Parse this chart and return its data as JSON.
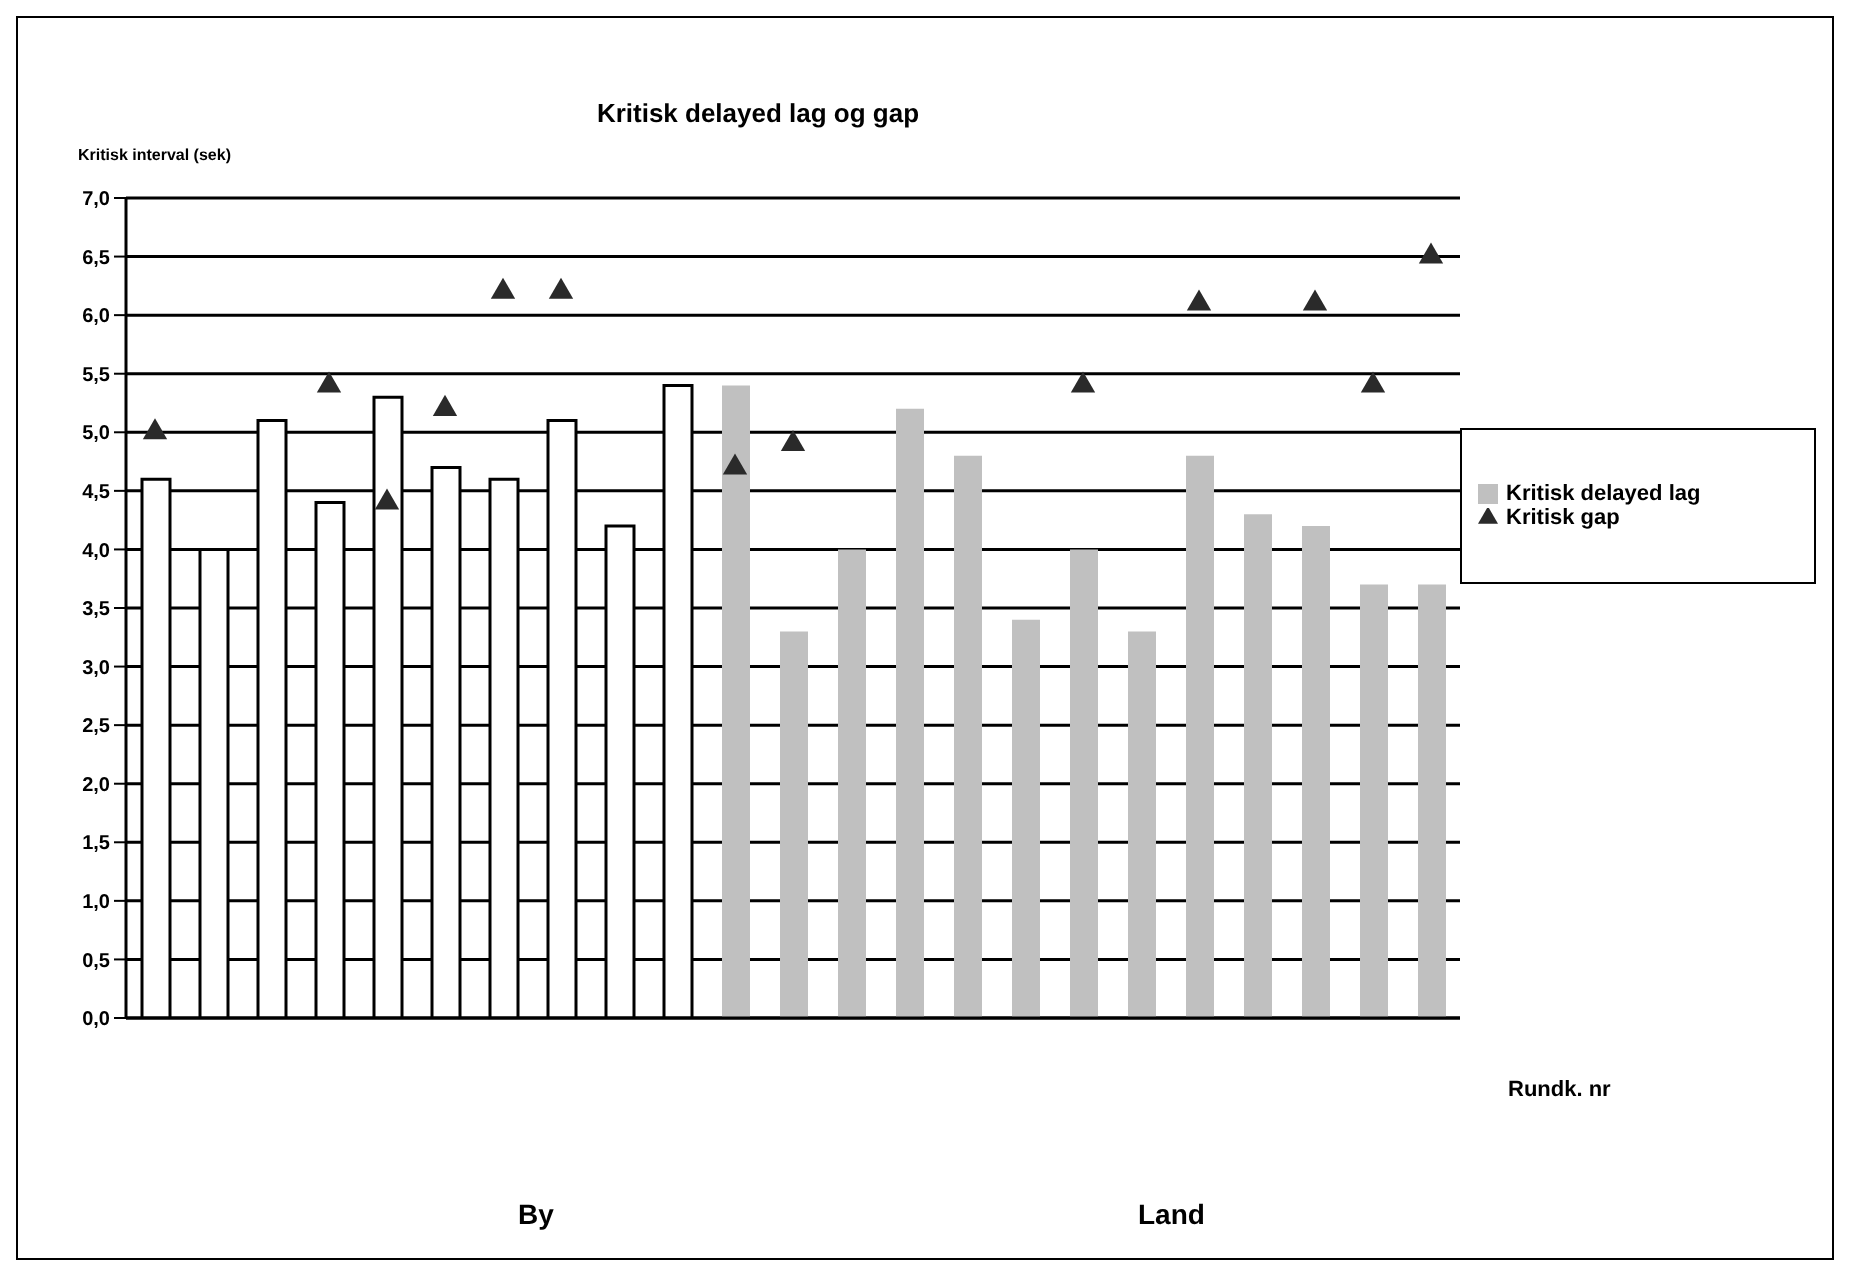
{
  "chart_data": {
    "type": "bar",
    "title": "Kritisk delayed lag og gap",
    "ylabel": "Kritisk interval (sek)",
    "xlabel": "Rundk. nr",
    "categories": [
      null,
      null,
      null,
      null,
      null,
      null,
      null,
      null,
      null,
      null,
      null,
      null,
      null,
      null,
      null,
      null,
      null,
      null,
      null,
      null,
      null,
      null,
      null
    ],
    "series": [
      {
        "name": "Kritisk delayed lag",
        "color": "#c0c0c0",
        "colors": [
          "#ffffff",
          "#ffffff",
          "#ffffff",
          "#ffffff",
          "#ffffff",
          "#ffffff",
          "#ffffff",
          "#ffffff",
          "#ffffff",
          "#ffffff",
          "#c0c0c0",
          "#c0c0c0",
          "#c0c0c0",
          "#c0c0c0",
          "#c0c0c0",
          "#c0c0c0",
          "#c0c0c0",
          "#c0c0c0",
          "#c0c0c0",
          "#c0c0c0",
          "#c0c0c0",
          "#c0c0c0",
          "#c0c0c0"
        ],
        "values": [
          4.6,
          4.0,
          5.1,
          4.4,
          5.3,
          4.7,
          4.6,
          5.1,
          4.2,
          5.4,
          5.4,
          3.3,
          4.0,
          5.2,
          4.8,
          3.4,
          4.0,
          3.3,
          4.8,
          4.3,
          4.2,
          3.7,
          3.7
        ]
      },
      {
        "name": "Kritisk gap",
        "type": "scatter",
        "color": "#2a2a2a",
        "marker": "triangle",
        "values": [
          5.0,
          null,
          null,
          5.4,
          4.4,
          5.2,
          6.2,
          6.2,
          null,
          null,
          4.7,
          4.9,
          null,
          null,
          null,
          null,
          5.4,
          null,
          6.1,
          null,
          6.1,
          5.4,
          6.5
        ]
      }
    ],
    "ylim": [
      0,
      7
    ],
    "yticks": [
      {
        "value": 0,
        "label": "0,0"
      },
      {
        "value": 0.5,
        "label": "0,5"
      },
      {
        "value": 1,
        "label": "1,0"
      },
      {
        "value": 1.5,
        "label": "1,5"
      },
      {
        "value": 2,
        "label": "2,0"
      },
      {
        "value": 2.5,
        "label": "2,5"
      },
      {
        "value": 3,
        "label": "3,0"
      },
      {
        "value": 3.5,
        "label": "3,5"
      },
      {
        "value": 4,
        "label": "4,0"
      },
      {
        "value": 4.5,
        "label": "4,5"
      },
      {
        "value": 5,
        "label": "5,0"
      },
      {
        "value": 5.5,
        "label": "5,5"
      },
      {
        "value": 6,
        "label": "6,0"
      },
      {
        "value": 6.5,
        "label": "6,5"
      },
      {
        "value": 7,
        "label": "7,0"
      }
    ],
    "grid": "y",
    "legend": "right",
    "tick_labels": "y",
    "annotations": [
      "By",
      "Land"
    ]
  }
}
